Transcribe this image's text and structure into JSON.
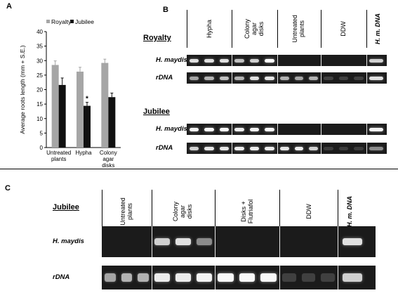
{
  "panel_a": {
    "label": "A",
    "chart_data": {
      "type": "bar",
      "categories": [
        "Untreated plants",
        "Hypha",
        "Colony agar disks"
      ],
      "category_lines": [
        [
          "Untreated",
          "plants"
        ],
        [
          "Hypha"
        ],
        [
          "Colony",
          "agar",
          "disks"
        ]
      ],
      "series": [
        {
          "name": "Royalty",
          "values": [
            28.5,
            26.2,
            29.2
          ],
          "errors": [
            1.4,
            1.5,
            1.3
          ],
          "color": "#a6a6a6"
        },
        {
          "name": "Jubilee",
          "values": [
            21.6,
            14.4,
            17.4
          ],
          "errors": [
            2.4,
            1.2,
            1.4
          ],
          "color": "#111111"
        }
      ],
      "ylabel": "Average roots length (mm + S.E.)",
      "ylim": [
        0,
        40
      ],
      "yticks": [
        "0",
        "5",
        "10",
        "15",
        "20",
        "25",
        "30",
        "35",
        "40"
      ],
      "annotations": [
        {
          "text": "*",
          "category": "Hypha",
          "series": "Jubilee"
        }
      ],
      "legend": "top"
    }
  },
  "panel_b": {
    "label": "B",
    "columns": [
      {
        "lines": [
          "Hypha"
        ]
      },
      {
        "lines": [
          "Colony",
          "agar",
          "disks"
        ]
      },
      {
        "lines": [
          "Untreated",
          "plants"
        ]
      },
      {
        "lines": [
          "DDW"
        ]
      },
      {
        "lines": [
          "H. m. DNA"
        ],
        "italic": true
      }
    ],
    "sections": [
      {
        "title": "Royalty",
        "rows": [
          {
            "label": "H. maydis",
            "band_intensity": [
              0.75,
              0.75,
              0.75,
              0.65,
              0.7,
              1.0,
              0,
              0,
              0,
              0,
              0,
              0,
              0.7
            ]
          },
          {
            "label": "rDNA",
            "band_intensity": [
              0.55,
              0.6,
              0.65,
              0.6,
              0.75,
              0.8,
              0.6,
              0.55,
              0.6,
              0.08,
              0.08,
              0.08,
              0.75
            ]
          }
        ]
      },
      {
        "title": "Jubilee",
        "rows": [
          {
            "label": "H. maydis",
            "band_intensity": [
              0.9,
              0.95,
              0.95,
              0.85,
              0.9,
              0.95,
              0,
              0,
              0,
              0,
              0,
              0,
              0.9
            ]
          },
          {
            "label": "rDNA",
            "band_intensity": [
              0.7,
              0.8,
              0.8,
              0.85,
              0.85,
              0.85,
              0.8,
              0.85,
              0.7,
              0.05,
              0.05,
              0.05,
              0.45
            ]
          }
        ]
      }
    ]
  },
  "panel_c": {
    "label": "C",
    "section_title": "Jubilee",
    "columns": [
      {
        "lines": [
          "Untreated",
          "plants"
        ]
      },
      {
        "lines": [
          "Colony",
          "agar",
          "disks"
        ]
      },
      {
        "lines": [
          "Disks +",
          "Flutriafol"
        ]
      },
      {
        "lines": [
          "DDW"
        ]
      },
      {
        "lines": [
          "H. m. DNA"
        ],
        "italic": true
      }
    ],
    "rows": [
      {
        "label": "H. maydis",
        "band_intensity": [
          0,
          0,
          0,
          0.7,
          0.75,
          0.45,
          0,
          0,
          0,
          0,
          0,
          0,
          0.75
        ]
      },
      {
        "label": "rDNA",
        "band_intensity": [
          0.55,
          0.6,
          0.6,
          0.85,
          0.85,
          0.9,
          0.95,
          0.95,
          0.95,
          0.08,
          0.08,
          0.08,
          0.7
        ]
      }
    ]
  }
}
